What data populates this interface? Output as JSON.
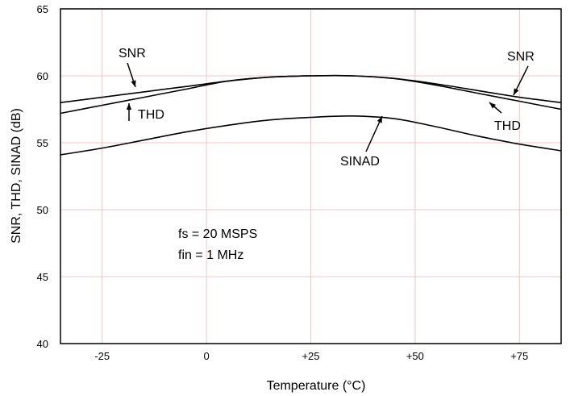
{
  "chart_data": {
    "type": "line",
    "xlabel": "Temperature (°C)",
    "ylabel": "SNR, THD, SINAD (dB)",
    "xlim": [
      -35,
      85
    ],
    "ylim": [
      40,
      65
    ],
    "x_ticks": [
      -25,
      0,
      25,
      50,
      75
    ],
    "x_tick_labels": [
      "-25",
      "0",
      "+25",
      "+50",
      "+75"
    ],
    "y_ticks": [
      40,
      45,
      50,
      55,
      60,
      65
    ],
    "y_tick_labels": [
      "40",
      "45",
      "50",
      "55",
      "60",
      "65"
    ],
    "grid": true,
    "grid_color": "#f4c4c4",
    "line_color": "#000000",
    "series": [
      {
        "name": "SNR",
        "x": [
          -35,
          -25,
          -15,
          -5,
          5,
          15,
          25,
          35,
          45,
          55,
          65,
          75,
          85
        ],
        "values": [
          58.0,
          58.4,
          58.8,
          59.2,
          59.6,
          59.9,
          60.0,
          60.0,
          59.8,
          59.4,
          58.9,
          58.4,
          58.0
        ]
      },
      {
        "name": "THD",
        "x": [
          -35,
          -25,
          -15,
          -5,
          5,
          15,
          25,
          35,
          45,
          55,
          65,
          75,
          85
        ],
        "values": [
          57.2,
          57.8,
          58.4,
          59.0,
          59.6,
          59.9,
          60.0,
          60.0,
          59.8,
          59.3,
          58.7,
          58.1,
          57.5
        ]
      },
      {
        "name": "SINAD",
        "x": [
          -35,
          -25,
          -15,
          -5,
          5,
          15,
          25,
          35,
          45,
          55,
          65,
          75,
          85
        ],
        "values": [
          54.1,
          54.6,
          55.2,
          55.8,
          56.3,
          56.7,
          56.9,
          57.0,
          56.8,
          56.2,
          55.5,
          54.9,
          54.4
        ]
      }
    ],
    "annotations": [
      {
        "text": "SNR",
        "series": "SNR"
      },
      {
        "text": "THD",
        "series": "THD"
      },
      {
        "text": "SNR",
        "series": "SNR"
      },
      {
        "text": "THD",
        "series": "THD"
      },
      {
        "text": "SINAD",
        "series": "SINAD"
      }
    ],
    "note_lines": [
      "fs = 20 MSPS",
      "fin = 1 MHz"
    ]
  }
}
